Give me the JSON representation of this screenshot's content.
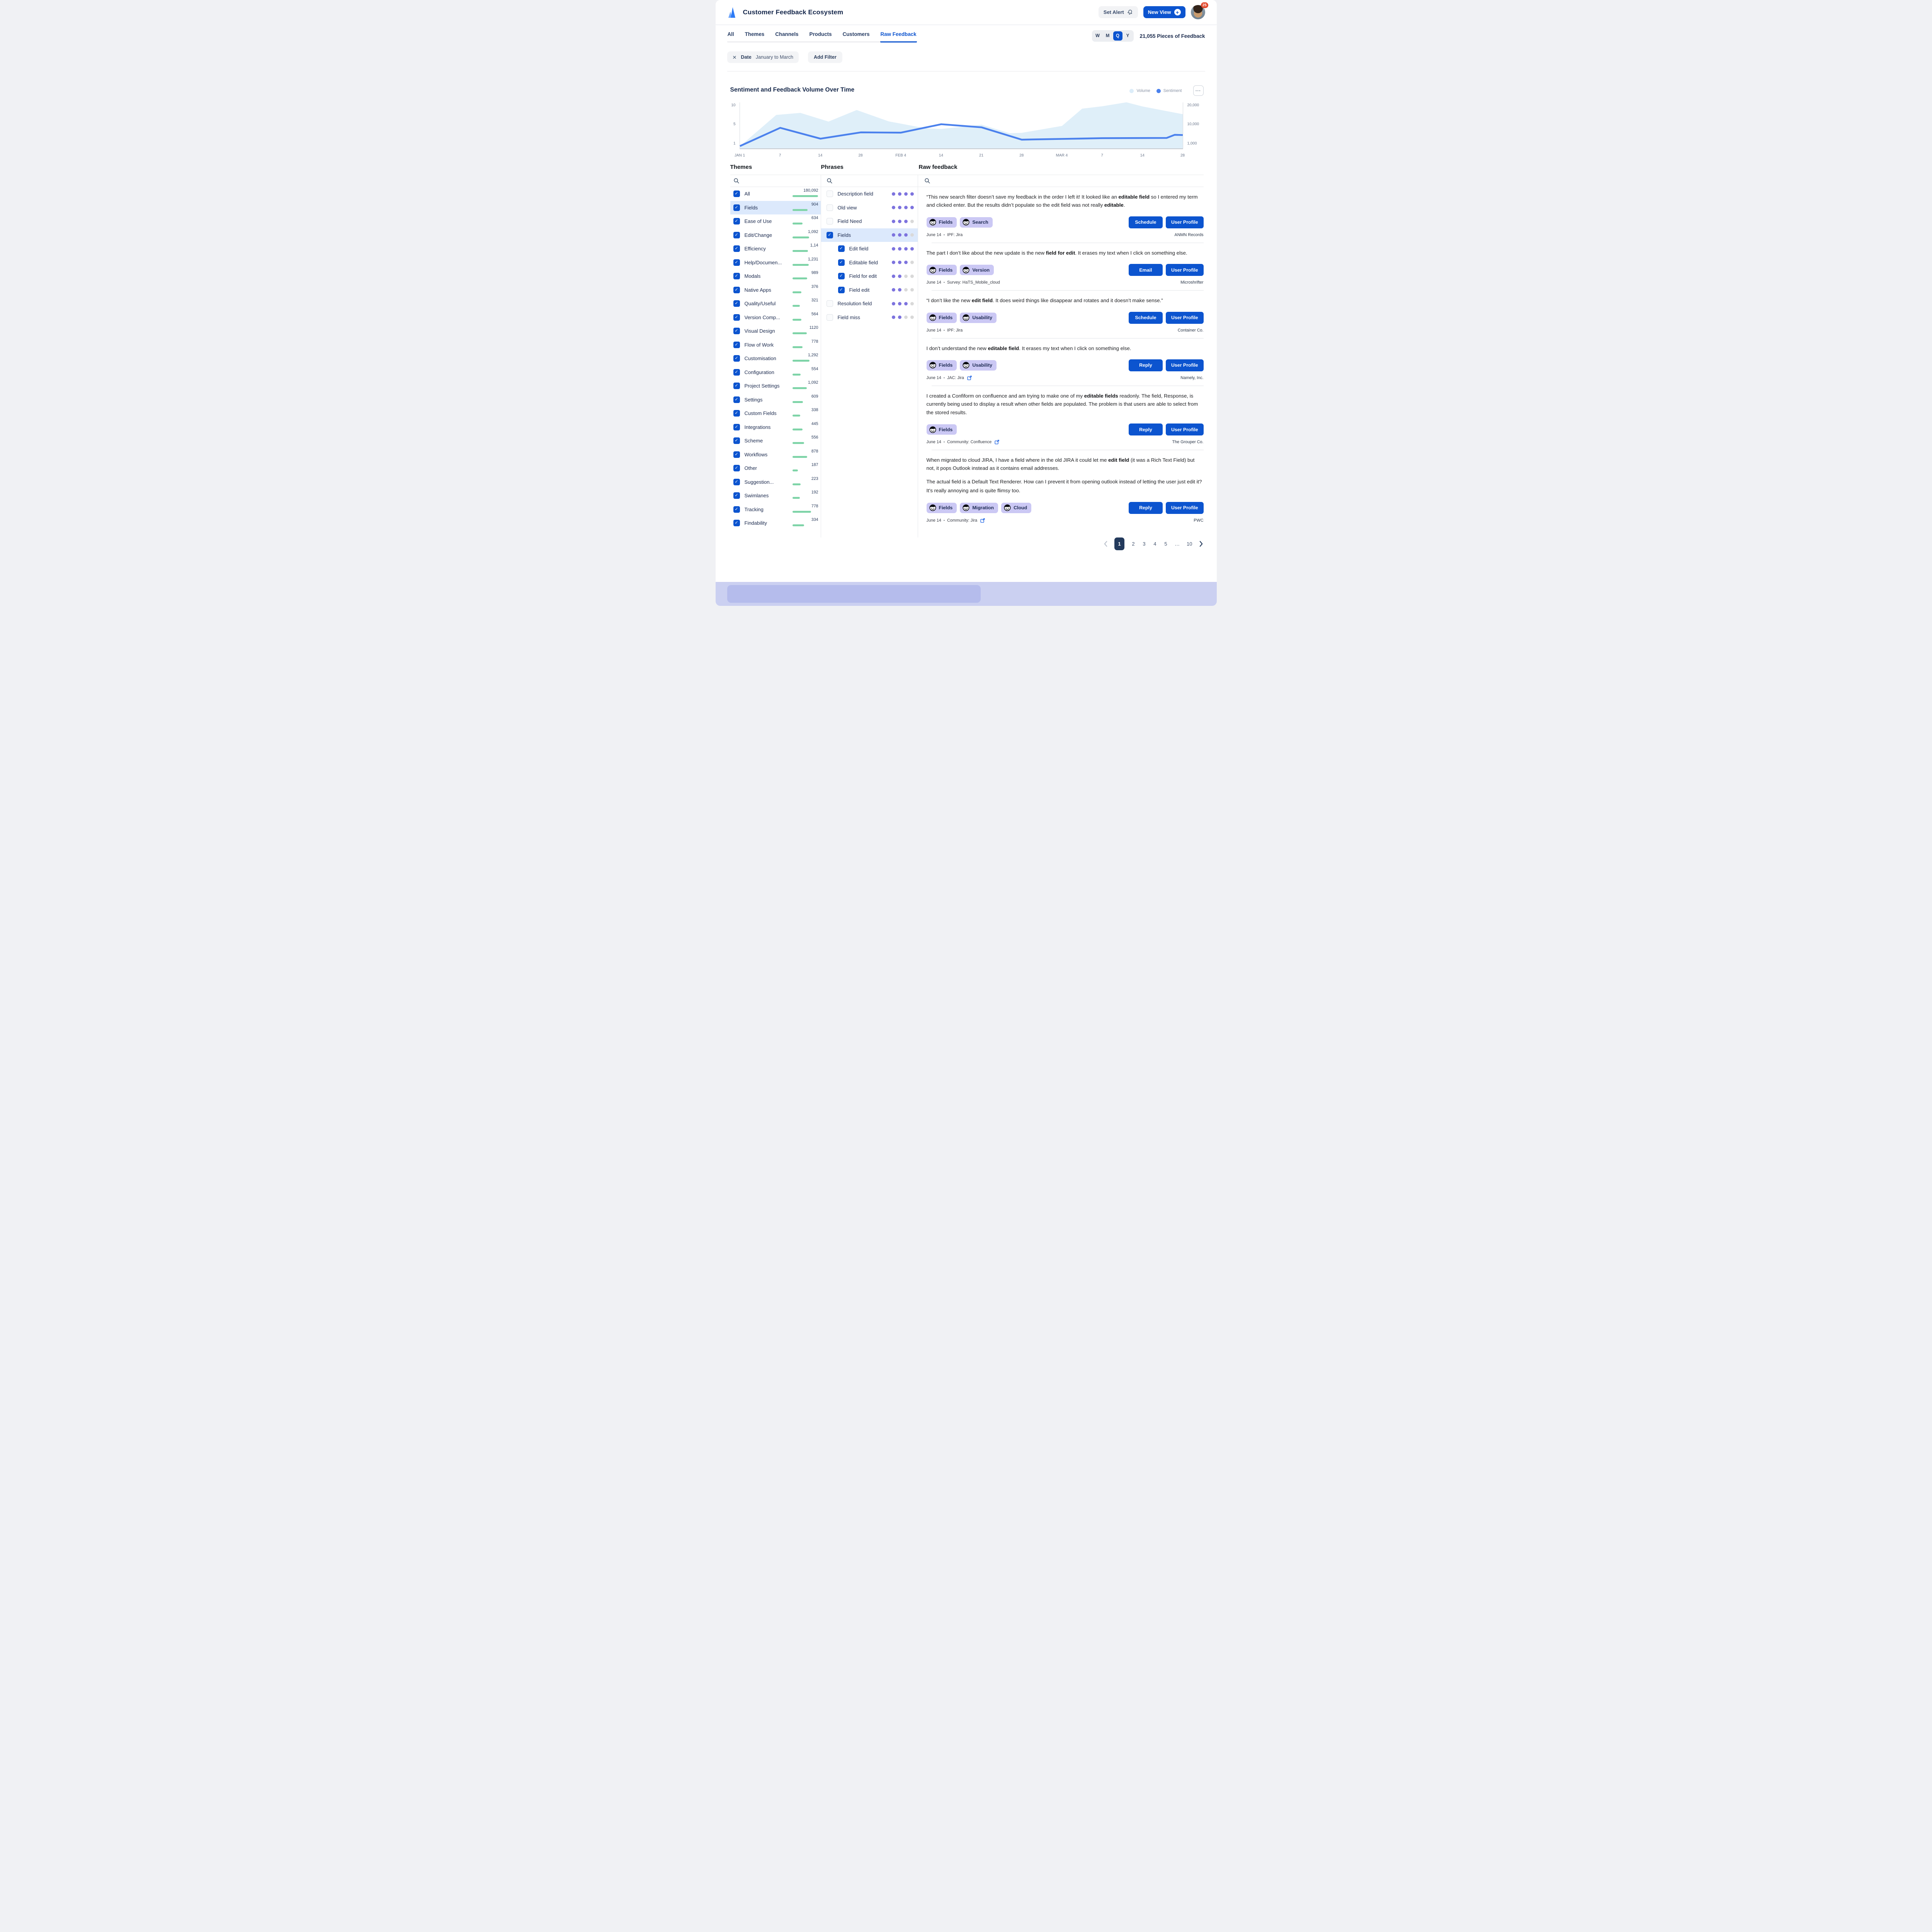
{
  "header": {
    "title": "Customer Feedback Ecosystem",
    "set_alert_label": "Set Alert",
    "new_view_label": "New View",
    "notification_count": "25"
  },
  "tabs": {
    "items": [
      "All",
      "Themes",
      "Channels",
      "Products",
      "Customers",
      "Raw Feedback"
    ],
    "active": "Raw Feedback"
  },
  "period_toggle": {
    "options": [
      "W",
      "M",
      "Q",
      "Y"
    ],
    "selected": "Q"
  },
  "feedback_count": "21,055 Pieces of Feedback",
  "filter_bar": {
    "clear_icon": "✕",
    "filter_name": "Date",
    "filter_value": "January to March",
    "add_filter_label": "Add Filter"
  },
  "chart": {
    "title": "Sentiment and Feedback Volume Over Time",
    "more_button": "•••",
    "legend": [
      {
        "label": "Volume",
        "color": "#DCEDF9"
      },
      {
        "label": "Sentiment",
        "color": "#4B81ED"
      }
    ],
    "chart_data": {
      "type": "area+line",
      "x_tick_labels": [
        "JAN 1",
        "7",
        "14",
        "28",
        "FEB 4",
        "14",
        "21",
        "28",
        "MAR 4",
        "7",
        "14",
        "28"
      ],
      "left_axis": {
        "name": "Sentiment",
        "tick_labels": [
          "10",
          "5",
          "1"
        ],
        "tick_values": [
          10,
          5,
          1
        ]
      },
      "right_axis": {
        "name": "Volume",
        "tick_labels": [
          "20,000",
          "10,000",
          "1,000"
        ],
        "tick_values": [
          20000,
          10000,
          1000
        ]
      },
      "series": [
        {
          "name": "Volume",
          "type": "area",
          "axis": "right",
          "color": "#DFEFF9",
          "points": [
            [
              0,
              400
            ],
            [
              0.9,
              15000
            ],
            [
              1.5,
              16100
            ],
            [
              2.2,
              11500
            ],
            [
              2.9,
              17600
            ],
            [
              3.7,
              11600
            ],
            [
              4,
              10400
            ],
            [
              4.6,
              8200
            ],
            [
              5,
              7900
            ],
            [
              6,
              9900
            ],
            [
              6.7,
              5900
            ],
            [
              7,
              6100
            ],
            [
              8,
              9300
            ],
            [
              8.5,
              18300
            ],
            [
              9,
              19600
            ],
            [
              9.6,
              21500
            ],
            [
              10,
              19500
            ],
            [
              11,
              15400
            ]
          ]
        },
        {
          "name": "Sentiment",
          "type": "line",
          "axis": "left",
          "color": "#4B81ED",
          "points": [
            [
              0,
              0.5
            ],
            [
              1,
              4.3
            ],
            [
              2,
              2.05
            ],
            [
              3,
              3.35
            ],
            [
              4,
              3.3
            ],
            [
              5,
              5.05
            ],
            [
              6,
              4.4
            ],
            [
              7,
              1.85
            ],
            [
              8,
              2
            ],
            [
              9,
              2.15
            ],
            [
              10.6,
              2.2
            ],
            [
              10.8,
              2.85
            ],
            [
              11,
              2.8
            ]
          ]
        }
      ]
    }
  },
  "themes": {
    "title": "Themes",
    "items": [
      {
        "label": "All",
        "count": "180,092",
        "bar": 66,
        "checked": true
      },
      {
        "label": "Fields",
        "count": "904",
        "bar": 39,
        "checked": true,
        "selected": true
      },
      {
        "label": "Ease of Use",
        "count": "634",
        "bar": 26,
        "checked": true
      },
      {
        "label": "Edit/Change",
        "count": "1,092",
        "bar": 43,
        "checked": true
      },
      {
        "label": "Efficiency",
        "count": "1,14",
        "bar": 40,
        "checked": true
      },
      {
        "label": "Help/Documen...",
        "count": "1,231",
        "bar": 42,
        "checked": true
      },
      {
        "label": "Modals",
        "count": "989",
        "bar": 38,
        "checked": true
      },
      {
        "label": "Native Apps",
        "count": "376",
        "bar": 23,
        "checked": true
      },
      {
        "label": "Quality/Useful",
        "count": "321",
        "bar": 19,
        "checked": true
      },
      {
        "label": "Version Comp...",
        "count": "564",
        "bar": 23,
        "checked": true
      },
      {
        "label": "Visual Design",
        "count": "1120",
        "bar": 37,
        "checked": true
      },
      {
        "label": "Flow of Work",
        "count": "778",
        "bar": 26,
        "checked": true
      },
      {
        "label": "Customisation",
        "count": "1,292",
        "bar": 44,
        "checked": true
      },
      {
        "label": "Configuration",
        "count": "554",
        "bar": 21,
        "checked": true
      },
      {
        "label": "Project Settings",
        "count": "1,092",
        "bar": 37,
        "checked": true
      },
      {
        "label": "Settings",
        "count": "609",
        "bar": 27,
        "checked": true
      },
      {
        "label": "Custom Fields",
        "count": "338",
        "bar": 20,
        "checked": true
      },
      {
        "label": "Integrations",
        "count": "445",
        "bar": 26,
        "checked": true
      },
      {
        "label": "Scheme",
        "count": "556",
        "bar": 30,
        "checked": true
      },
      {
        "label": "Workflows",
        "count": "878",
        "bar": 38,
        "checked": true
      },
      {
        "label": "Other",
        "count": "187",
        "bar": 14,
        "checked": true
      },
      {
        "label": "Suggestion...",
        "count": "223",
        "bar": 21,
        "checked": true
      },
      {
        "label": "Swimlanes",
        "count": "192",
        "bar": 19,
        "checked": true
      },
      {
        "label": "Tracking",
        "count": "778",
        "bar": 48,
        "checked": true
      },
      {
        "label": "Findability",
        "count": "334",
        "bar": 30,
        "checked": true
      }
    ]
  },
  "phrases": {
    "title": "Phrases",
    "dot_colors": {
      "on": "#7D73DE",
      "off": "#D9D9D9"
    },
    "items": [
      {
        "label": "Description field",
        "checked": false,
        "indent": false,
        "dots": [
          1,
          1,
          1,
          1
        ]
      },
      {
        "label": "Old view",
        "checked": false,
        "indent": false,
        "dots": [
          1,
          1,
          1,
          1
        ]
      },
      {
        "label": "Field Need",
        "checked": false,
        "indent": false,
        "dots": [
          1,
          1,
          1,
          0
        ]
      },
      {
        "label": "Fields",
        "checked": true,
        "indent": false,
        "selected": true,
        "dots": [
          1,
          1,
          1,
          0
        ]
      },
      {
        "label": "Edit field",
        "checked": true,
        "indent": true,
        "dots": [
          1,
          1,
          1,
          1
        ]
      },
      {
        "label": "Editable field",
        "checked": true,
        "indent": true,
        "dots": [
          1,
          1,
          1,
          0
        ]
      },
      {
        "label": "Field for edit",
        "checked": true,
        "indent": true,
        "dots": [
          1,
          1,
          0,
          0
        ]
      },
      {
        "label": "Field edit",
        "checked": true,
        "indent": true,
        "dots": [
          1,
          1,
          0,
          0
        ]
      },
      {
        "label": "Resolution field",
        "checked": false,
        "indent": false,
        "dots": [
          1,
          1,
          1,
          0
        ]
      },
      {
        "label": "Field miss",
        "checked": false,
        "indent": false,
        "dots": [
          1,
          1,
          0,
          0
        ]
      }
    ]
  },
  "raw_feedback": {
    "title": "Raw feedback",
    "cards": [
      {
        "paragraphs": [
          {
            "gap": "none",
            "segments": [
              {
                "t": "“This new search filter doesn’t save my feedback in the order I left it! It looked like an "
              },
              {
                "t": "editable field",
                "b": true
              },
              {
                "t": " so I entered my term and clicked enter. But the results didn’t populate so the edit field was not really "
              },
              {
                "t": "editable",
                "b": true
              },
              {
                "t": "."
              }
            ]
          }
        ],
        "tags": [
          "Fields",
          "Search"
        ],
        "buttons": [
          "Schedule",
          "User Profile"
        ],
        "meta": {
          "date": "June 14",
          "source": "IPF: Jira",
          "external_link": false,
          "company": "ANMN Records"
        }
      },
      {
        "paragraphs": [
          {
            "gap": "none",
            "segments": [
              {
                "t": "The part I don’t like about the new update is the new "
              },
              {
                "t": "field for edit",
                "b": true
              },
              {
                "t": ". It erases my text when I click on something else."
              }
            ]
          }
        ],
        "tags": [
          "Fields",
          "Version"
        ],
        "buttons": [
          "Email",
          "User Profile"
        ],
        "meta": {
          "date": "June 14",
          "source": "Survey: HaTS_Mobile_cloud",
          "external_link": false,
          "company": "Microshrifter"
        }
      },
      {
        "paragraphs": [
          {
            "gap": "none",
            "segments": [
              {
                "t": "“I don’t like the new "
              },
              {
                "t": "edit field",
                "b": true
              },
              {
                "t": ". It does weird things like disappear and rotates and it doesn’t make sense.”"
              }
            ]
          }
        ],
        "tags": [
          "Fields",
          "Usability"
        ],
        "buttons": [
          "Schedule",
          "User Profile"
        ],
        "meta": {
          "date": "June 14",
          "source": "IPF: Jira",
          "external_link": false,
          "company": "Container Co."
        }
      },
      {
        "paragraphs": [
          {
            "gap": "none",
            "segments": [
              {
                "t": "I don’t understand the new "
              },
              {
                "t": "editable field",
                "b": true
              },
              {
                "t": ". It erases my text when I click on something else."
              }
            ]
          }
        ],
        "tags": [
          "Fields",
          "Usability"
        ],
        "buttons": [
          "Reply",
          "User Profile"
        ],
        "meta": {
          "date": "June 14",
          "source": "JAC: Jira",
          "external_link": true,
          "company": "Namely, Inc."
        }
      },
      {
        "paragraphs": [
          {
            "gap": "none",
            "segments": [
              {
                "t": "I created a Confiform on confluence and am trying to make one of my "
              },
              {
                "t": "editable fields",
                "b": true
              },
              {
                "t": " readonly. The field, Response, is currently being used to display a result when other fields are populated. The problem is that users are able to select from the stored results."
              }
            ]
          }
        ],
        "tags": [
          "Fields"
        ],
        "buttons": [
          "Reply",
          "User Profile"
        ],
        "meta": {
          "date": "June 14",
          "source": "Community: Confluence",
          "external_link": true,
          "company": "The Grouper Co."
        }
      },
      {
        "paragraphs": [
          {
            "gap": "none",
            "segments": [
              {
                "t": "When migrated to cloud JIRA, I have a field where in the old JIRA it could let me "
              },
              {
                "t": "edit field",
                "b": true
              },
              {
                "t": " (it was a Rich Text Field) but not, it pops Outlook instead as it contains email addresses."
              }
            ]
          },
          {
            "gap": "large",
            "segments": [
              {
                "t": "The actual field is a Default Text Renderer. How can I prevent it from opening outlook instead of letting the user just edit it?"
              }
            ]
          },
          {
            "gap": "line",
            "segments": [
              {
                "t": "It's really annoying and is quite flimsy too."
              }
            ]
          }
        ],
        "tags": [
          "Fields",
          "Migration",
          "Cloud"
        ],
        "buttons": [
          "Reply",
          "User Profile"
        ],
        "meta": {
          "date": "June 14",
          "source": "Community: Jira",
          "external_link": true,
          "company": "PWC"
        }
      }
    ]
  },
  "pagination": {
    "pages": [
      "1",
      "2",
      "3",
      "4",
      "5",
      "…",
      "10"
    ],
    "active": "1"
  }
}
